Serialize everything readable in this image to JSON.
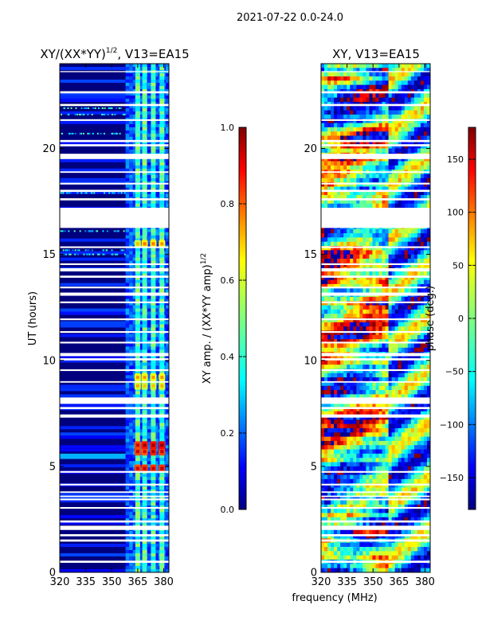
{
  "figure": {
    "suptitle": "2021-07-22 0.0-24.0",
    "xlabel_shared": "frequency (MHz)"
  },
  "chart_data": [
    {
      "type": "heatmap",
      "title": "XY/(XX*YY)",
      "title_exponent": "1/2",
      "title_suffix": ", V13=EA15",
      "xlabel": "",
      "ylabel": "UT (hours)",
      "xlim": [
        320,
        383
      ],
      "ylim": [
        0,
        24
      ],
      "xticks": [
        320,
        335,
        350,
        365,
        380
      ],
      "yticks": [
        0,
        5,
        10,
        15,
        20
      ],
      "colorbar": {
        "label": "XY amp. / (XX*YY amp)",
        "label_exponent": "1/2",
        "range": [
          0.0,
          1.0
        ],
        "ticks": [
          "0.0",
          "0.2",
          "0.4",
          "0.6",
          "0.8",
          "1.0"
        ],
        "colormap": "jet"
      },
      "gaps_hours": [
        [
          0.45,
          0.55
        ],
        [
          1.45,
          1.55
        ],
        [
          1.7,
          1.8
        ],
        [
          2.0,
          2.2
        ],
        [
          2.35,
          2.45
        ],
        [
          3.0,
          3.08
        ],
        [
          3.4,
          3.48
        ],
        [
          3.55,
          3.62
        ],
        [
          3.75,
          3.82
        ],
        [
          4.1,
          4.18
        ],
        [
          4.7,
          4.78
        ],
        [
          7.3,
          7.45
        ],
        [
          7.7,
          7.8
        ],
        [
          7.95,
          8.25
        ],
        [
          8.95,
          9.02
        ],
        [
          9.5,
          9.58
        ],
        [
          10.0,
          10.1
        ],
        [
          10.2,
          10.35
        ],
        [
          10.8,
          10.88
        ],
        [
          11.3,
          11.38
        ],
        [
          11.9,
          11.98
        ],
        [
          12.7,
          12.78
        ],
        [
          13.05,
          13.2
        ],
        [
          13.4,
          13.48
        ],
        [
          13.9,
          14.0
        ],
        [
          14.2,
          14.35
        ],
        [
          14.5,
          14.58
        ],
        [
          15.3,
          15.38
        ],
        [
          16.25,
          17.2
        ],
        [
          17.55,
          17.65
        ],
        [
          17.95,
          18.05
        ],
        [
          18.3,
          18.38
        ],
        [
          18.85,
          18.92
        ],
        [
          19.5,
          19.75
        ],
        [
          20.1,
          20.2
        ],
        [
          20.3,
          20.4
        ],
        [
          21.3,
          21.38
        ],
        [
          22.0,
          22.1
        ],
        [
          22.6,
          22.7
        ],
        [
          23.6,
          23.65
        ]
      ],
      "bright_channel_centers_mhz": [
        365,
        369,
        374,
        379
      ],
      "hot_spots_hours": [
        4.9,
        5.7,
        6.0,
        8.8,
        9.2,
        15.5
      ]
    },
    {
      "type": "heatmap",
      "title": "XY, V13=EA15",
      "xlabel": "",
      "ylabel": "",
      "xlim": [
        320,
        383
      ],
      "ylim": [
        0,
        24
      ],
      "xticks": [
        320,
        335,
        350,
        365,
        380
      ],
      "yticks": [
        0,
        5,
        10,
        15,
        20
      ],
      "colorbar": {
        "label": "phase (deg.)",
        "range": [
          -180,
          180
        ],
        "ticks": [
          "−150",
          "−100",
          "−50",
          "0",
          "50",
          "100",
          "150"
        ],
        "colormap": "jet"
      }
    }
  ],
  "colors": {
    "jet": [
      "#00007f",
      "#0000ff",
      "#007fff",
      "#00ffff",
      "#7fff7f",
      "#ffff00",
      "#ff7f00",
      "#ff0000",
      "#7f0000"
    ],
    "axis": "#000000",
    "gap": "#ffffff"
  }
}
